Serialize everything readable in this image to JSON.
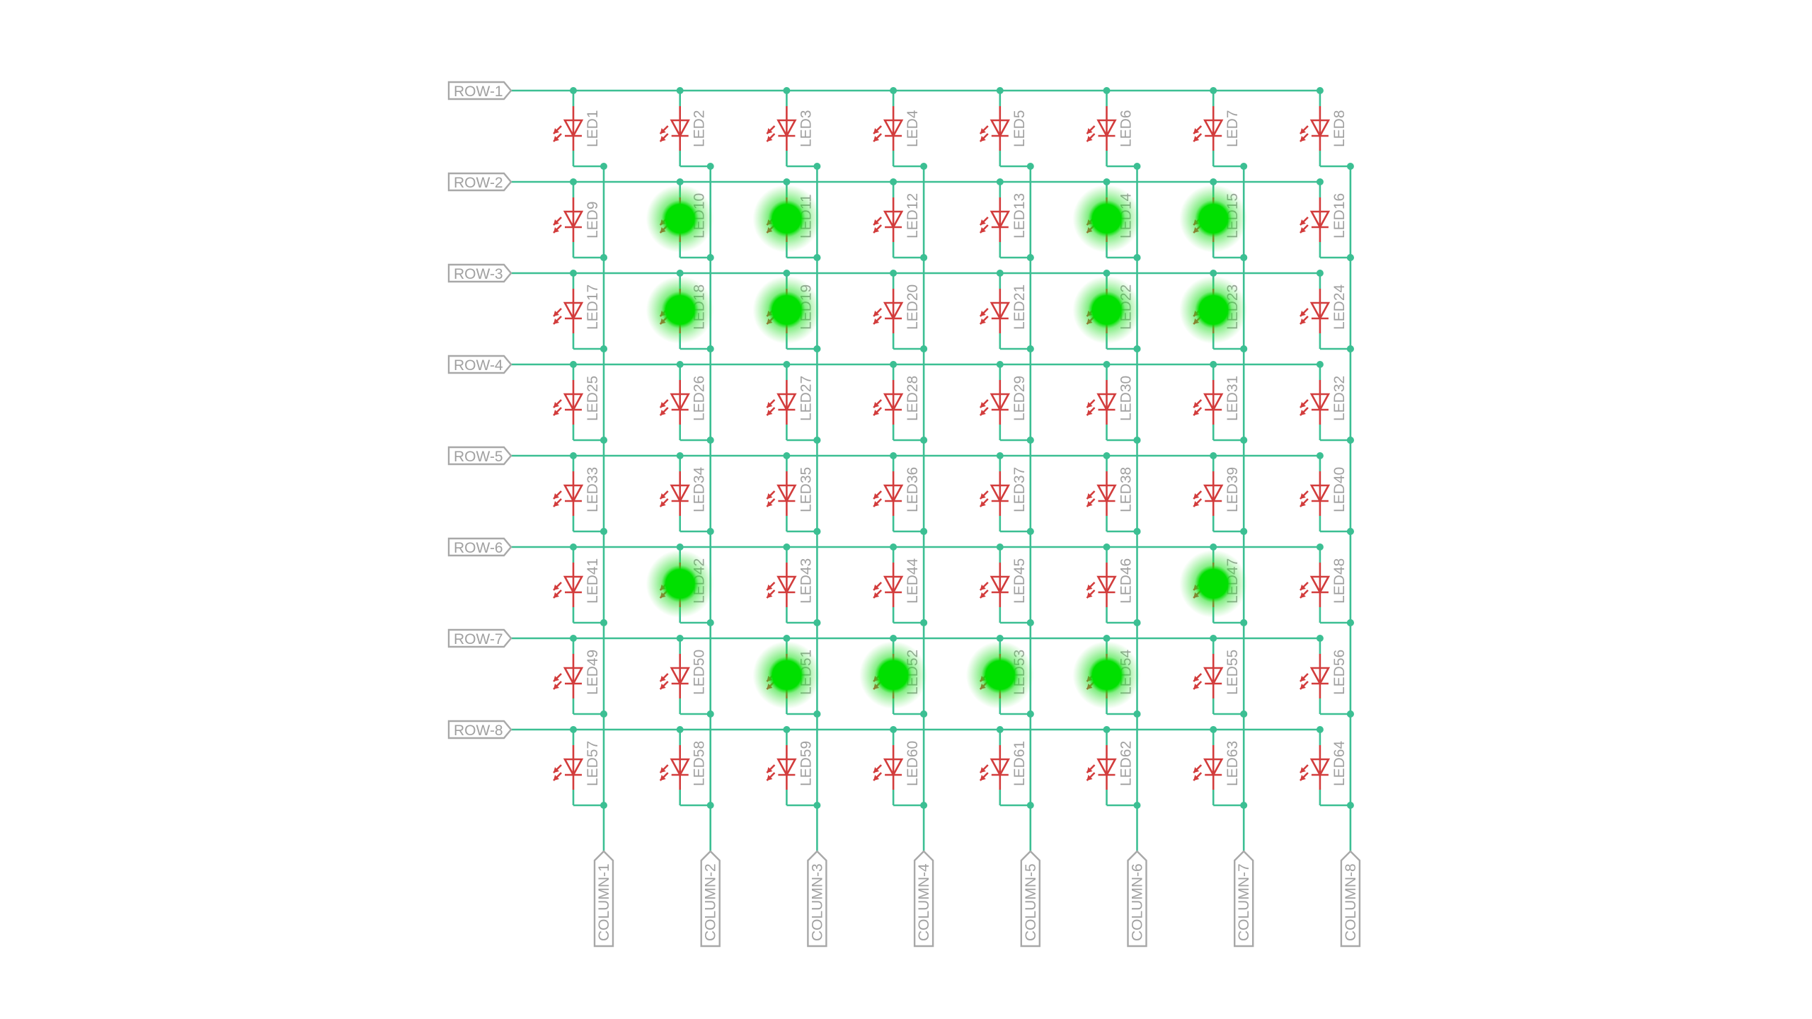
{
  "colors": {
    "wire": "#3cbf93",
    "led_symbol": "#d23c3c",
    "label_text": "#a0a0a0",
    "port_outline": "#a8a8a8",
    "lit_glow": "#00e000"
  },
  "rows": [
    "ROW-1",
    "ROW-2",
    "ROW-3",
    "ROW-4",
    "ROW-5",
    "ROW-6",
    "ROW-7",
    "ROW-8"
  ],
  "columns": [
    "COLUMN-1",
    "COLUMN-2",
    "COLUMN-3",
    "COLUMN-4",
    "COLUMN-5",
    "COLUMN-6",
    "COLUMN-7",
    "COLUMN-8"
  ],
  "leds": [
    "LED1",
    "LED2",
    "LED3",
    "LED4",
    "LED5",
    "LED6",
    "LED7",
    "LED8",
    "LED9",
    "LED10",
    "LED11",
    "LED12",
    "LED13",
    "LED14",
    "LED15",
    "LED16",
    "LED17",
    "LED18",
    "LED19",
    "LED20",
    "LED21",
    "LED22",
    "LED23",
    "LED24",
    "LED25",
    "LED26",
    "LED27",
    "LED28",
    "LED29",
    "LED30",
    "LED31",
    "LED32",
    "LED33",
    "LED34",
    "LED35",
    "LED36",
    "LED37",
    "LED38",
    "LED39",
    "LED40",
    "LED41",
    "LED42",
    "LED43",
    "LED44",
    "LED45",
    "LED46",
    "LED47",
    "LED48",
    "LED49",
    "LED50",
    "LED51",
    "LED52",
    "LED53",
    "LED54",
    "LED55",
    "LED56",
    "LED57",
    "LED58",
    "LED59",
    "LED60",
    "LED61",
    "LED62",
    "LED63",
    "LED64"
  ],
  "lit_leds": [
    "LED10",
    "LED11",
    "LED14",
    "LED15",
    "LED18",
    "LED19",
    "LED22",
    "LED23",
    "LED42",
    "LED47",
    "LED51",
    "LED52",
    "LED53",
    "LED54"
  ]
}
